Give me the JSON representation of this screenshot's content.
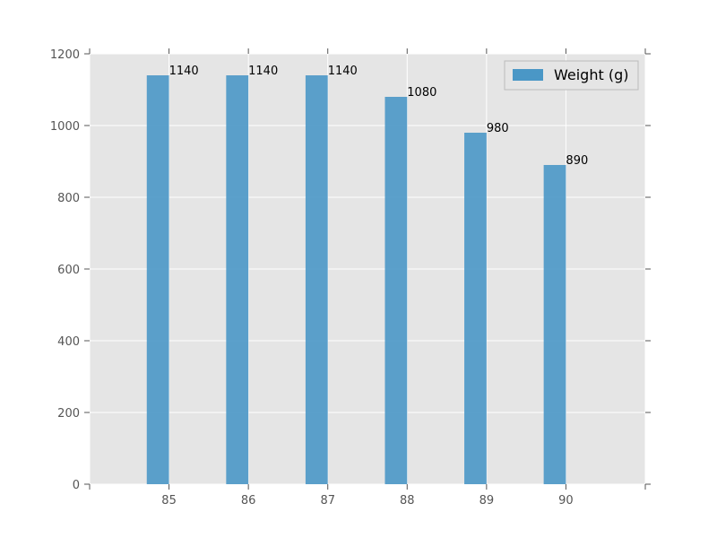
{
  "chart_data": {
    "type": "bar",
    "title": "",
    "xlabel": "",
    "ylabel": "",
    "categories": [
      "85",
      "86",
      "87",
      "88",
      "89",
      "90"
    ],
    "x_values": [
      85,
      86,
      87,
      88,
      89,
      90
    ],
    "series": [
      {
        "name": "Weight (g)",
        "values": [
          1140,
          1140,
          1140,
          1080,
          980,
          890
        ],
        "color": "#4a97c6"
      }
    ],
    "data_labels": [
      "1140",
      "1140",
      "1140",
      "1080",
      "980",
      "890"
    ],
    "ylim": [
      0,
      1200
    ],
    "yticks": [
      0,
      200,
      400,
      600,
      800,
      1000,
      1200
    ],
    "xlim": [
      84,
      91
    ],
    "grid": true,
    "legend_position": "top-right",
    "colors": {
      "plot_background": "#e5e5e5",
      "grid": "#ffffff",
      "tick_text": "#555555"
    }
  }
}
